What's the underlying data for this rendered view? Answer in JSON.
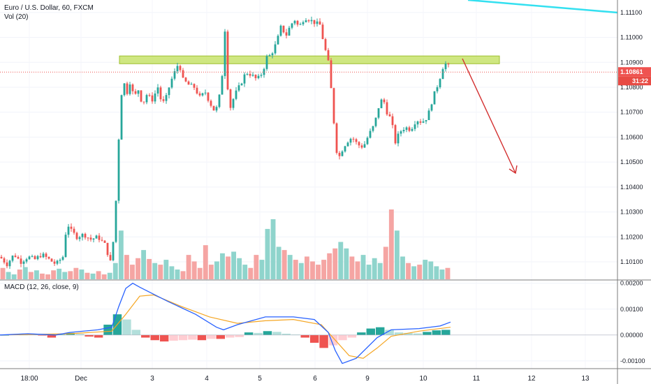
{
  "chart_data": {
    "type": "candlestick",
    "symbol_title": "Euro / U.S. Dollar, 60, FXCM",
    "volume_label": "Vol (20)",
    "macd_label": "MACD (12, 26, close, 9)",
    "x_ticks": [
      "18:00",
      "Dec",
      "3",
      "4",
      "5",
      "6",
      "9",
      "10",
      "11",
      "12",
      "13"
    ],
    "price_axis": {
      "ticks": [
        "1.11100",
        "1.11000",
        "1.10900",
        "1.10800",
        "1.10700",
        "1.10600",
        "1.10500",
        "1.10400",
        "1.10300",
        "1.10200",
        "1.10100"
      ],
      "range": [
        1.1003,
        1.1115
      ]
    },
    "macd_axis": {
      "ticks": [
        "0.00200",
        "0.00100",
        "0.00000",
        "-0.00100"
      ],
      "range": [
        -0.0013,
        0.0021
      ]
    },
    "current_price": "1.10861",
    "countdown": "31:22",
    "resistance_zone": [
      1.109,
      1.1092
    ],
    "price_path": [
      [
        0,
        1.1012
      ],
      [
        10,
        1.1009
      ],
      [
        20,
        1.1013
      ],
      [
        30,
        1.101
      ],
      [
        40,
        1.1012
      ],
      [
        50,
        1.1011
      ],
      [
        60,
        1.1013
      ],
      [
        70,
        1.1011
      ],
      [
        80,
        1.1009
      ],
      [
        90,
        1.1012
      ],
      [
        96,
        1.1026
      ],
      [
        100,
        1.1023
      ],
      [
        110,
        1.102
      ],
      [
        120,
        1.1021
      ],
      [
        130,
        1.1019
      ],
      [
        140,
        1.102
      ],
      [
        150,
        1.1017
      ],
      [
        158,
        1.101
      ],
      [
        164,
        1.1022
      ],
      [
        168,
        1.1047
      ],
      [
        172,
        1.1072
      ],
      [
        176,
        1.1083
      ],
      [
        182,
        1.1078
      ],
      [
        186,
        1.1082
      ],
      [
        192,
        1.1076
      ],
      [
        198,
        1.1079
      ],
      [
        204,
        1.1073
      ],
      [
        210,
        1.1077
      ],
      [
        218,
        1.1075
      ],
      [
        226,
        1.108
      ],
      [
        232,
        1.1073
      ],
      [
        238,
        1.1076
      ],
      [
        244,
        1.1082
      ],
      [
        250,
        1.1086
      ],
      [
        256,
        1.109
      ],
      [
        262,
        1.1083
      ],
      [
        270,
        1.1081
      ],
      [
        278,
        1.108
      ],
      [
        286,
        1.1076
      ],
      [
        294,
        1.1078
      ],
      [
        300,
        1.1074
      ],
      [
        306,
        1.1071
      ],
      [
        312,
        1.1072
      ],
      [
        318,
        1.1085
      ],
      [
        322,
        1.1103
      ],
      [
        326,
        1.108
      ],
      [
        330,
        1.1072
      ],
      [
        336,
        1.1077
      ],
      [
        344,
        1.1081
      ],
      [
        352,
        1.1086
      ],
      [
        360,
        1.1085
      ],
      [
        368,
        1.1083
      ],
      [
        376,
        1.1086
      ],
      [
        382,
        1.1092
      ],
      [
        388,
        1.1093
      ],
      [
        396,
        1.1098
      ],
      [
        402,
        1.1104
      ],
      [
        410,
        1.1101
      ],
      [
        416,
        1.1105
      ],
      [
        422,
        1.1107
      ],
      [
        428,
        1.1104
      ],
      [
        436,
        1.1108
      ],
      [
        444,
        1.1107
      ],
      [
        450,
        1.1106
      ],
      [
        458,
        1.1105
      ],
      [
        464,
        1.1097
      ],
      [
        470,
        1.109
      ],
      [
        476,
        1.1074
      ],
      [
        480,
        1.1058
      ],
      [
        484,
        1.1051
      ],
      [
        490,
        1.1055
      ],
      [
        496,
        1.1058
      ],
      [
        504,
        1.106
      ],
      [
        512,
        1.1057
      ],
      [
        520,
        1.1056
      ],
      [
        528,
        1.1061
      ],
      [
        536,
        1.1065
      ],
      [
        542,
        1.1072
      ],
      [
        548,
        1.1076
      ],
      [
        554,
        1.107
      ],
      [
        560,
        1.1067
      ],
      [
        566,
        1.1058
      ],
      [
        572,
        1.1062
      ],
      [
        580,
        1.1064
      ],
      [
        588,
        1.1063
      ],
      [
        596,
        1.1067
      ],
      [
        604,
        1.1066
      ],
      [
        612,
        1.1068
      ],
      [
        620,
        1.1076
      ],
      [
        628,
        1.1082
      ],
      [
        634,
        1.1088
      ],
      [
        640,
        1.109
      ],
      [
        645,
        1.1086
      ]
    ],
    "volume": [
      14,
      9,
      6,
      12,
      15,
      9,
      11,
      7,
      6,
      11,
      13,
      9,
      10,
      14,
      12,
      8,
      7,
      10,
      6,
      8,
      20,
      60,
      30,
      18,
      26,
      36,
      25,
      20,
      18,
      24,
      16,
      12,
      10,
      30,
      22,
      14,
      42,
      18,
      22,
      32,
      28,
      34,
      26,
      18,
      14,
      30,
      24,
      62,
      74,
      40,
      36,
      30,
      24,
      20,
      28,
      22,
      18,
      24,
      32,
      38,
      46,
      38,
      28,
      22,
      30,
      18,
      26,
      20,
      40,
      86,
      60,
      28,
      20,
      16,
      18,
      24,
      22,
      16,
      12,
      14
    ],
    "macd": {
      "macd_line": [
        [
          0,
          0.0
        ],
        [
          40,
          5e-05
        ],
        [
          80,
          0.0
        ],
        [
          100,
          0.0001
        ],
        [
          140,
          0.0002
        ],
        [
          160,
          0.0003
        ],
        [
          170,
          0.0011
        ],
        [
          180,
          0.0018
        ],
        [
          190,
          0.002
        ],
        [
          200,
          0.00185
        ],
        [
          240,
          0.0013
        ],
        [
          280,
          0.0008
        ],
        [
          310,
          0.0003
        ],
        [
          320,
          0.0002
        ],
        [
          340,
          0.0004
        ],
        [
          380,
          0.0007
        ],
        [
          420,
          0.0007
        ],
        [
          450,
          0.0006
        ],
        [
          470,
          0.0001
        ],
        [
          480,
          -0.0006
        ],
        [
          490,
          -0.0011
        ],
        [
          510,
          -0.0009
        ],
        [
          540,
          -0.0001
        ],
        [
          560,
          0.0002
        ],
        [
          600,
          0.00025
        ],
        [
          630,
          0.00035
        ],
        [
          645,
          0.0005
        ]
      ],
      "signal_line": [
        [
          0,
          0.0
        ],
        [
          60,
          3e-05
        ],
        [
          100,
          5e-05
        ],
        [
          160,
          0.00015
        ],
        [
          180,
          0.0008
        ],
        [
          200,
          0.0015
        ],
        [
          220,
          0.00155
        ],
        [
          260,
          0.0011
        ],
        [
          300,
          0.0007
        ],
        [
          340,
          0.00045
        ],
        [
          380,
          0.00055
        ],
        [
          420,
          0.0006
        ],
        [
          460,
          0.0004
        ],
        [
          480,
          -0.0002
        ],
        [
          500,
          -0.0008
        ],
        [
          520,
          -0.0009
        ],
        [
          540,
          -0.0005
        ],
        [
          560,
          -5e-05
        ],
        [
          600,
          0.00015
        ],
        [
          645,
          0.0003
        ]
      ],
      "histogram": [
        0,
        2e-05,
        1e-05,
        3e-05,
        -2e-05,
        -0.0001,
        2e-05,
        8e-05,
        4e-05,
        -6e-05,
        -0.0001,
        0.0004,
        0.0008,
        0.0006,
        0.0002,
        -0.0001,
        -0.0002,
        -0.00025,
        -0.00022,
        -0.0002,
        -0.00018,
        -0.0002,
        -0.00015,
        -0.00015,
        -0.0001,
        -8e-05,
        0.0001,
        8e-05,
        0.00015,
        0.00012,
        5e-05,
        2e-05,
        -0.0001,
        -0.0003,
        -0.0005,
        -0.0004,
        -0.0002,
        -0.0001,
        0.0001,
        0.00025,
        0.0003,
        0.0002,
        0.0001,
        8e-05,
        6e-05,
        0.00012,
        0.00018,
        0.0002
      ]
    },
    "colors": {
      "up": "#26a69a",
      "down": "#ef5350",
      "vol_up": "#8fd4cc",
      "vol_down": "#f5a5a3",
      "macd_line": "#2962ff",
      "signal_line": "#f5a623",
      "hist_up_strong": "#26a69a",
      "hist_up_weak": "#b2dfdb",
      "hist_down_strong": "#ef5350",
      "hist_down_weak": "#ffcdd2",
      "resistance_zone": "#c7e36b",
      "trendline": "#33e0f0",
      "arrow": "#d32f2f",
      "price_badge": "#ef5350",
      "countdown_badge": "#e84b44"
    }
  }
}
